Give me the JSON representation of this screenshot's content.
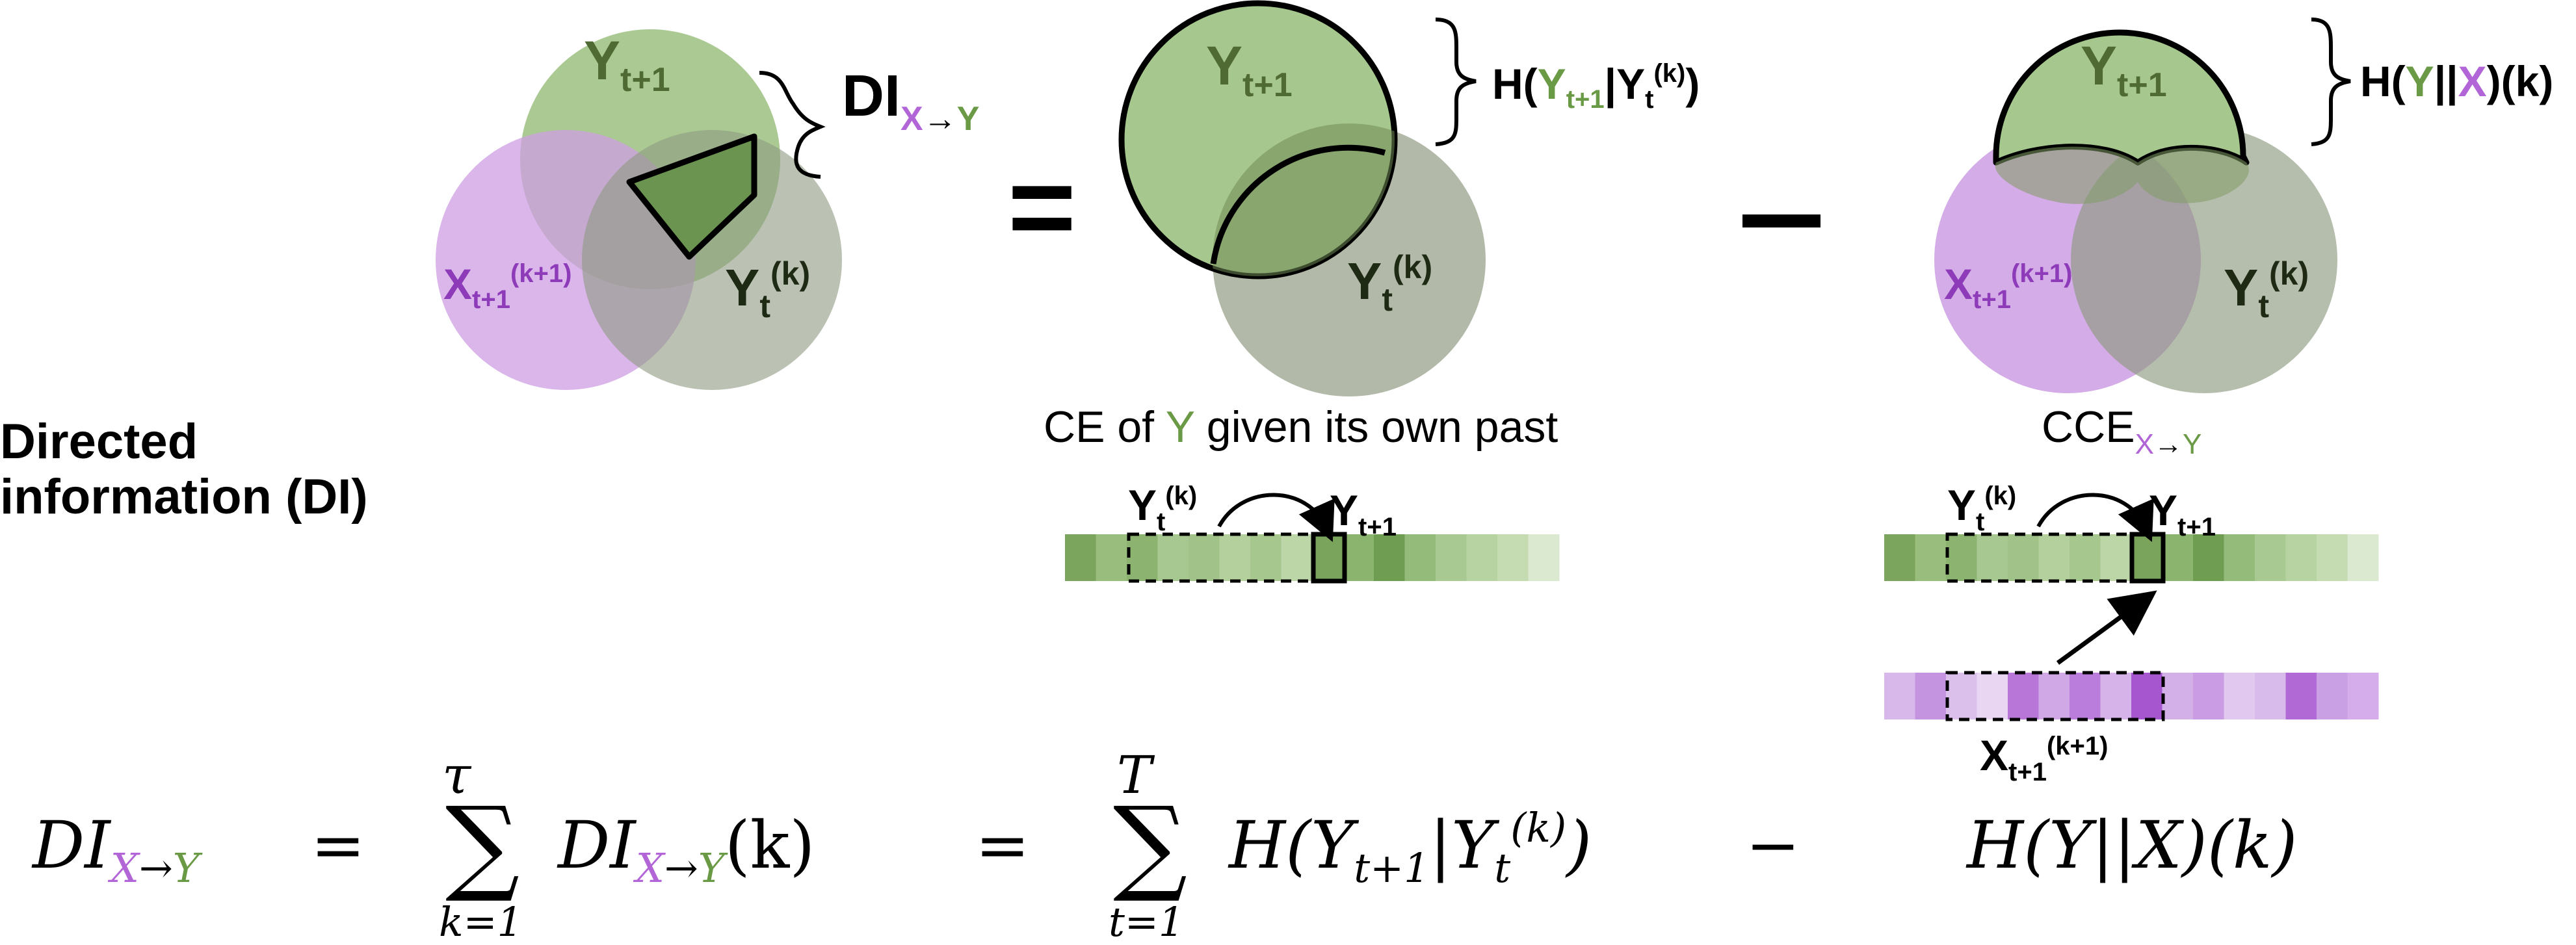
{
  "colors": {
    "green_fill": "#a6c78d",
    "green_dark": "#7aa35c",
    "green_text": "#6a9a45",
    "grey_fill": "#b2b9a8",
    "purple_fill": "#cd9ee3",
    "purple_text": "#b165d6",
    "purple_dark_text": "#8d3bb8",
    "stroke": "#000000"
  },
  "side_label": {
    "line1": "Directed",
    "line2": "information (DI)"
  },
  "left_venn": {
    "top": {
      "main": "Y",
      "sub": "t+1"
    },
    "left": {
      "main": "X",
      "sub": "t+1",
      "sup": "(k+1)"
    },
    "right": {
      "main": "Y",
      "sub": "t",
      "sup": "(k)"
    },
    "brace_label": {
      "main": "DI",
      "sub_x": "X",
      "sub_arrow": "→",
      "sub_y": "Y"
    }
  },
  "equals_sign": "=",
  "minus_sign": "−",
  "middle_venn": {
    "top": {
      "main": "Y",
      "sub": "t+1"
    },
    "right": {
      "main": "Y",
      "sub": "t",
      "sup": "(k)"
    },
    "brace_label": {
      "prefix": "H(",
      "y": "Y",
      "y_sub": "t+1",
      "bar": "|",
      "cond": "Y",
      "cond_sub": "t",
      "cond_sup": "(k)",
      "close": ")"
    },
    "caption": {
      "before": "CE of ",
      "y": "Y",
      "after": " given its own past"
    }
  },
  "right_venn": {
    "top": {
      "main": "Y",
      "sub": "t+1"
    },
    "left": {
      "main": "X",
      "sub": "t+1",
      "sup": "(k+1)"
    },
    "right": {
      "main": "Y",
      "sub": "t",
      "sup": "(k)"
    },
    "brace_label": {
      "prefix": "H(",
      "y": "Y",
      "bars": "||",
      "x": "X",
      "suffix": ")(k)"
    },
    "caption": {
      "main": "CCE",
      "sub_x": "X",
      "sub_arrow": "→",
      "sub_y": "Y"
    }
  },
  "middle_strip": {
    "past_label": {
      "main": "Y",
      "sub": "t",
      "sup": "(k)"
    },
    "next_label": {
      "main": "Y",
      "sub": "t+1"
    },
    "shades": [
      "#7ba55c",
      "#98bd7d",
      "#8cb470",
      "#a8c891",
      "#a1c389",
      "#b3d09d",
      "#a6c78d",
      "#bcd6a8",
      "#7aa35c",
      "#8bb46e",
      "#6f9d51",
      "#95bb7a",
      "#a9c992",
      "#b7d3a2",
      "#c5dcb3",
      "#dae9cf"
    ]
  },
  "right_strip_y": {
    "past_label": {
      "main": "Y",
      "sub": "t",
      "sup": "(k)"
    },
    "next_label": {
      "main": "Y",
      "sub": "t+1"
    },
    "shades": [
      "#7ba55c",
      "#98bd7d",
      "#8cb470",
      "#a8c891",
      "#a1c389",
      "#b3d09d",
      "#a6c78d",
      "#bcd6a8",
      "#7aa35c",
      "#8bb46e",
      "#6f9d51",
      "#95bb7a",
      "#a9c992",
      "#b7d3a2",
      "#c5dcb3",
      "#dae9cf"
    ]
  },
  "right_strip_x": {
    "label": {
      "main": "X",
      "sub": "t+1",
      "sup": "(k+1)"
    },
    "shades": [
      "#d8b8ea",
      "#c594e0",
      "#dcc0ec",
      "#e8d6f3",
      "#b877d8",
      "#d0a8e6",
      "#bb7ddb",
      "#d6b4e9",
      "#a656cf",
      "#d3b1e8",
      "#c99ce3",
      "#e0c8ef",
      "#d9bbeb",
      "#b16ad5",
      "#caa0e4",
      "#d4adea"
    ]
  },
  "formula": {
    "lhs": {
      "main": "DI",
      "sub_x": "X",
      "sub_arrow": "→",
      "sub_y": "Y"
    },
    "eq1": "=",
    "sum1": {
      "symbol": "∑",
      "upper": "τ",
      "lower": "k=1"
    },
    "term1": {
      "main": "DI",
      "sub_x": "X",
      "sub_arrow": "→",
      "sub_y": "Y",
      "arg": "(k)"
    },
    "eq2": "=",
    "sum2": {
      "symbol": "∑",
      "upper": "T",
      "lower": "t=1"
    },
    "term2": {
      "open": "H(Y",
      "sub": "t+1",
      "bar": "|Y",
      "cond_sub": "t",
      "cond_sup": "(k)",
      "close": ")"
    },
    "minus": "−",
    "term3": "H(Y||X)(k)"
  }
}
